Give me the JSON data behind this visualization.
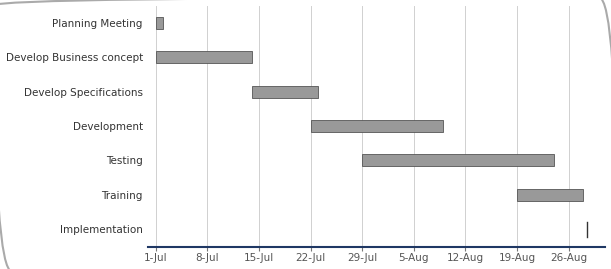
{
  "tasks": [
    "Planning Meeting",
    "Develop Business concept",
    "Develop Specifications",
    "Development",
    "Testing",
    "Training",
    "Implementation"
  ],
  "bars": [
    {
      "start": 0,
      "duration": 1
    },
    {
      "start": 0,
      "duration": 13
    },
    {
      "start": 13,
      "duration": 9
    },
    {
      "start": 21,
      "duration": 18
    },
    {
      "start": 28,
      "duration": 26
    },
    {
      "start": 49,
      "duration": 9
    },
    {
      "start": 58,
      "duration": 0
    }
  ],
  "x_tick_days": [
    0,
    7,
    14,
    21,
    28,
    35,
    42,
    49,
    56
  ],
  "x_tick_labels": [
    "1-Jul",
    "8-Jul",
    "15-Jul",
    "22-Jul",
    "29-Jul",
    "5-Aug",
    "12-Aug",
    "19-Aug",
    "26-Aug"
  ],
  "bar_color": "#999999",
  "bar_edge_color": "#555555",
  "bar_height": 0.35,
  "xlim": [
    -1,
    61
  ],
  "ylim": [
    -0.5,
    6.5
  ],
  "background_color": "#ffffff",
  "grid_color": "#d0d0d0",
  "axis_color": "#1f3864",
  "impl_line_x": 58.5,
  "figsize": [
    6.11,
    2.69
  ],
  "dpi": 100,
  "label_fontsize": 7.5,
  "tick_fontsize": 7.5
}
